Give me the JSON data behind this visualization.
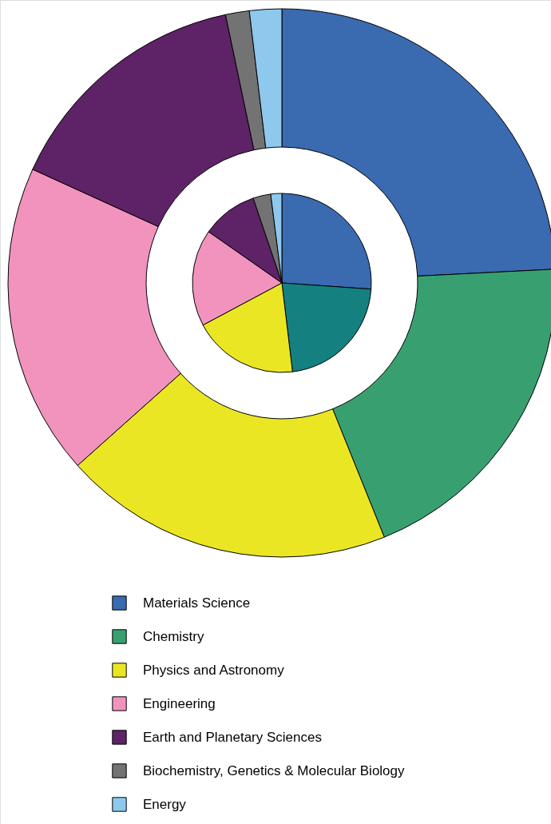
{
  "chart_data": {
    "type": "donut",
    "categories": [
      "Materials Science",
      "Chemistry",
      "Physics and Astronomy",
      "Engineering",
      "Earth and Planetary Sciences",
      "Biochemistry, Genetics & Molecular Biology",
      "Energy"
    ],
    "series": [
      {
        "values": [
          24.2,
          19.7,
          19.5,
          18.4,
          14.9,
          1.4,
          1.9
        ],
        "colors": [
          "#3a6ab0",
          "#38a070",
          "#ebe624",
          "#f193bd",
          "#5e2266",
          "#737373",
          "#8ec8ec"
        ]
      },
      {
        "type": "pie",
        "values": [
          26.1,
          22.0,
          19.1,
          17.5,
          10.1,
          3.2,
          2.0
        ],
        "colors": [
          "#3a6ab0",
          "#158080",
          "#ebe624",
          "#f193bd",
          "#5e2266",
          "#737373",
          "#8ec8ec"
        ]
      }
    ],
    "legend": "bottom"
  }
}
